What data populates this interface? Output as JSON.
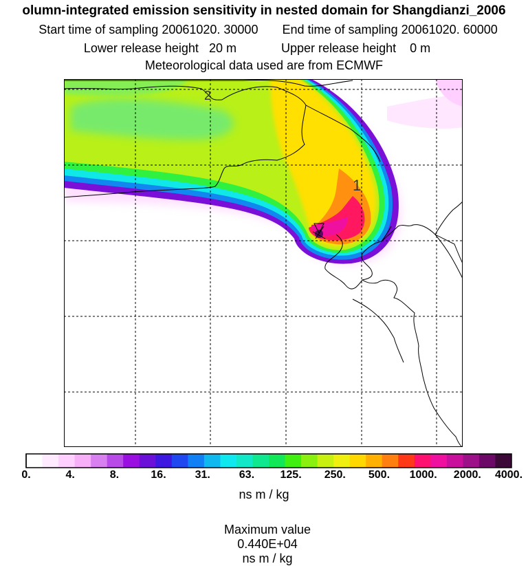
{
  "header": {
    "title": "olumn-integrated emission sensitivity in nested domain for Shangdianzi_2006",
    "start_label": "Start time of sampling",
    "start_value": "20061020. 30000",
    "end_label": "End time of sampling",
    "end_value": "20061020. 60000",
    "lower_label": "Lower release height",
    "lower_value": "20 m",
    "upper_label": "Upper release height",
    "upper_value": "0 m",
    "met_text": "Meteorological data used are from ECMWF"
  },
  "map": {
    "contour_labels": [
      "2",
      "1"
    ]
  },
  "legend": {
    "tick_labels": [
      "0.",
      "4.",
      "8.",
      "16.",
      "31.",
      "63.",
      "125.",
      "250.",
      "500.",
      "1000.",
      "2000.",
      "4000."
    ],
    "colors": [
      "#ffffff",
      "#ffeaff",
      "#ffcfff",
      "#f7b0f7",
      "#d880f0",
      "#b84ae8",
      "#9a10e0",
      "#6a10d8",
      "#3c18e0",
      "#2048f0",
      "#1080f4",
      "#10b8f0",
      "#10e8f0",
      "#10e8c8",
      "#10e890",
      "#10e858",
      "#40f010",
      "#8af010",
      "#c8f010",
      "#f0f010",
      "#ffd800",
      "#ffb000",
      "#ff8010",
      "#ff3818",
      "#ff1070",
      "#f010a0",
      "#c8109c",
      "#9c1088",
      "#6c0868",
      "#3c0838"
    ],
    "units": "ns m / kg"
  },
  "footer": {
    "max_label": "Maximum value",
    "max_value": "0.440E+04",
    "max_units": "ns m / kg"
  }
}
